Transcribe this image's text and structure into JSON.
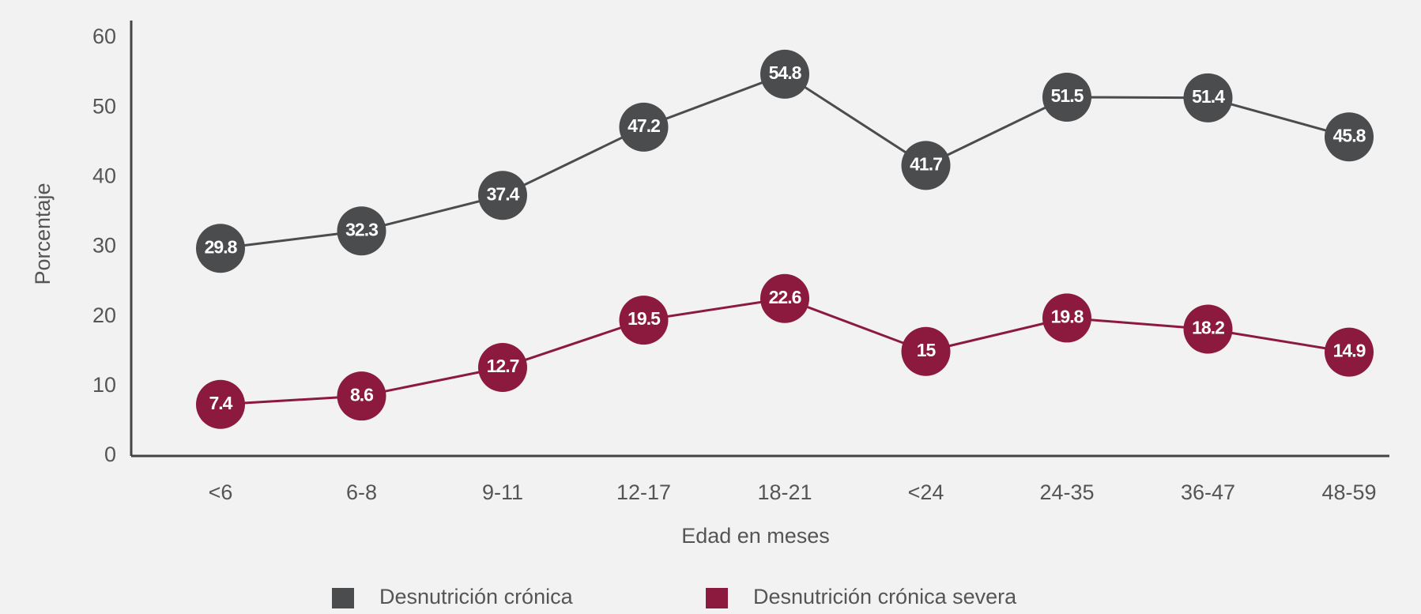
{
  "chart_data": {
    "type": "line",
    "categories": [
      "<6",
      "6-8",
      "9-11",
      "12-17",
      "18-21",
      "<24",
      "24-35",
      "36-47",
      "48-59"
    ],
    "series": [
      {
        "name": "Desnutrición crónica",
        "color": "#4b4c4e",
        "values": [
          29.8,
          32.3,
          37.4,
          47.2,
          54.8,
          41.7,
          51.5,
          51.4,
          45.8
        ]
      },
      {
        "name": "Desnutrición crónica severa",
        "color": "#8b1a3e",
        "values": [
          7.4,
          8.6,
          12.7,
          19.5,
          22.6,
          15,
          19.8,
          18.2,
          14.9
        ]
      }
    ],
    "xlabel": "Edad en meses",
    "ylabel": "Porcentaje",
    "ylim": [
      0,
      60
    ],
    "yticks": [
      0,
      10,
      20,
      30,
      40,
      50,
      60
    ],
    "grid": false,
    "legend": "bottom"
  }
}
